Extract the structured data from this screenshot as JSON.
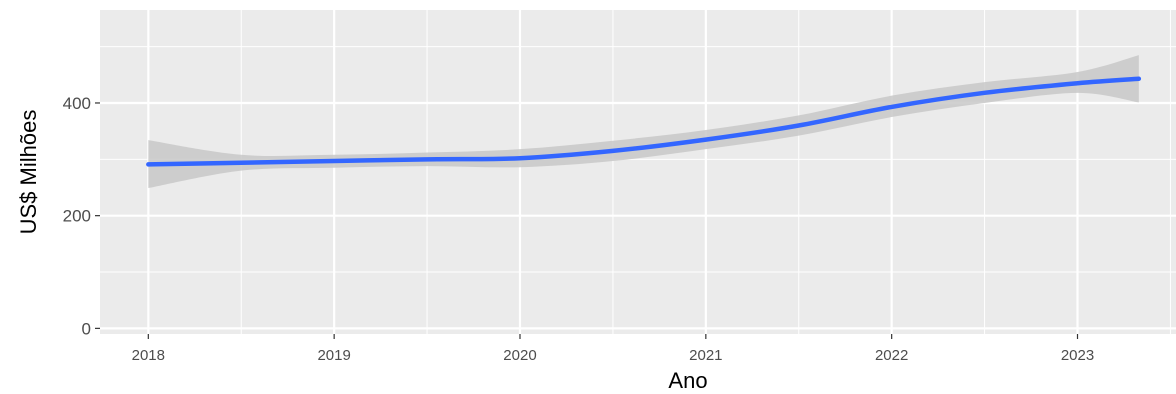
{
  "chart_data": {
    "type": "line",
    "title": "",
    "xlabel": "Ano",
    "ylabel": "US$ Milhões",
    "x_ticks": [
      "2018",
      "2019",
      "2020",
      "2021",
      "2022",
      "2023"
    ],
    "y_ticks": [
      "0",
      "200",
      "400"
    ],
    "xlim": [
      2017.74,
      2023.53
    ],
    "ylim": [
      -10,
      565
    ],
    "grid": true,
    "background": "#ebebeb",
    "line_color": "#3366ff",
    "ribbon_color": "#c8c8c8",
    "series": [
      {
        "x": [
          2018.0,
          2018.5,
          2019.0,
          2019.5,
          2020.0,
          2020.5,
          2021.0,
          2021.5,
          2022.0,
          2022.5,
          2023.0,
          2023.33
        ],
        "y": [
          291,
          294,
          297,
          300,
          302,
          315,
          335,
          360,
          393,
          418,
          435,
          443
        ],
        "lower": [
          249,
          280,
          285,
          288,
          286,
          297,
          318,
          342,
          375,
          400,
          418,
          401
        ],
        "upper": [
          334,
          308,
          308,
          312,
          318,
          333,
          352,
          378,
          413,
          437,
          455,
          485
        ]
      }
    ]
  }
}
